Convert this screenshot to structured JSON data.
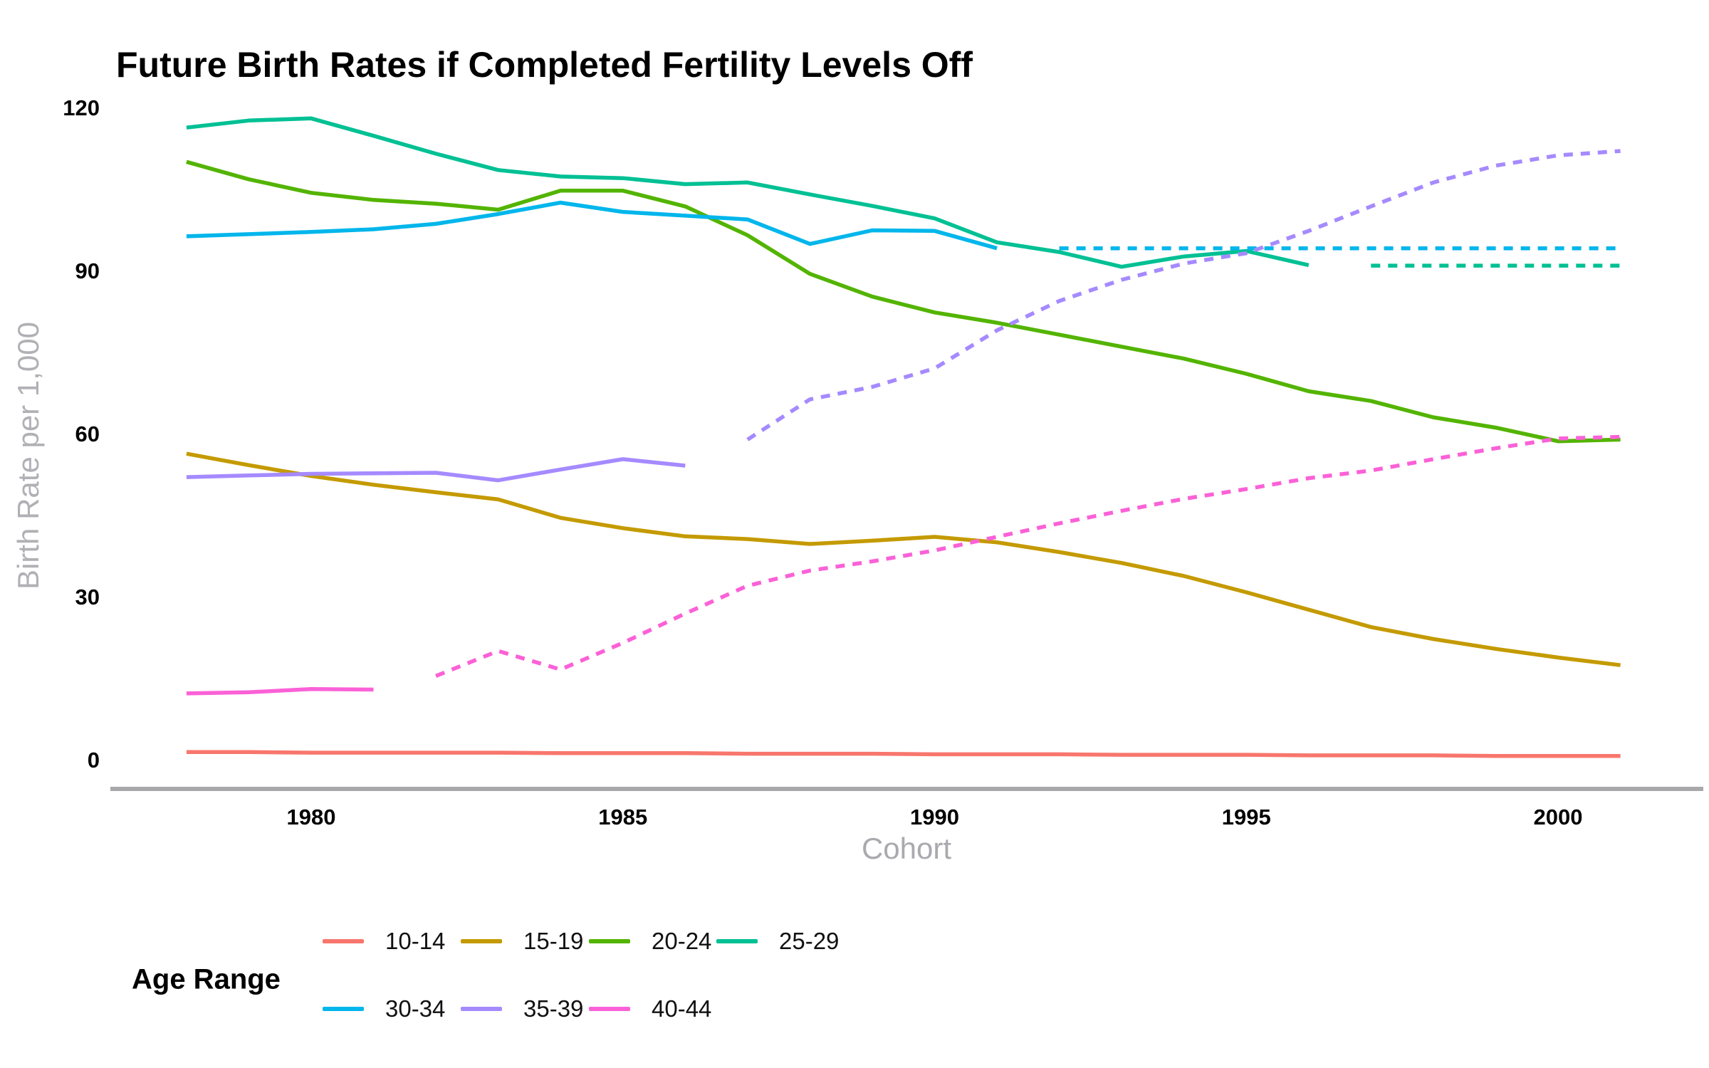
{
  "chart_data": {
    "type": "line",
    "title": "Future Birth Rates if Completed Fertility Levels Off",
    "xlabel": "Cohort",
    "ylabel": "Birth Rate per 1,000",
    "legend_title": "Age Range",
    "x_ticks": [
      "1980",
      "1985",
      "1990",
      "1995",
      "2000"
    ],
    "y_ticks": [
      "0",
      "30",
      "60",
      "90",
      "120"
    ],
    "x_range": [
      1976.8,
      2002.3
    ],
    "ylim": [
      0,
      120
    ],
    "grid": false,
    "legend_position": "bottom",
    "axis_line_color": "#a8a8aa",
    "axis_title_color": "#a9a9ae",
    "series": [
      {
        "name": "10-14",
        "color": "#F8766D",
        "solid": {
          "start": 1978,
          "values": [
            1.4,
            1.4,
            1.3,
            1.3,
            1.3,
            1.3,
            1.2,
            1.2,
            1.2,
            1.1,
            1.1,
            1.1,
            1.0,
            1.0,
            1.0,
            0.9,
            0.9,
            0.9,
            0.8,
            0.8,
            0.8,
            0.7,
            0.7,
            0.7
          ]
        },
        "dashed": null
      },
      {
        "name": "15-19",
        "color": "#C49A00",
        "solid": {
          "start": 1978,
          "values": [
            56.3,
            54.2,
            52.2,
            50.6,
            49.2,
            47.9,
            44.5,
            42.6,
            41.1,
            40.6,
            39.7,
            40.3,
            41.0,
            40.0,
            38.2,
            36.2,
            33.8,
            30.8,
            27.6,
            24.4,
            22.2,
            20.4,
            18.8,
            17.4
          ]
        },
        "dashed": null
      },
      {
        "name": "20-24",
        "color": "#53B400",
        "solid": {
          "start": 1978,
          "values": [
            110.0,
            106.8,
            104.3,
            103.0,
            102.3,
            101.2,
            104.7,
            104.7,
            101.8,
            96.5,
            89.4,
            85.2,
            82.3,
            80.4,
            78.2,
            76.0,
            73.8,
            71.0,
            67.8,
            66.0,
            63.0,
            61.1,
            58.6,
            58.9
          ]
        },
        "dashed": null
      },
      {
        "name": "25-29",
        "color": "#00C094",
        "solid": {
          "start": 1978,
          "values": [
            116.3,
            117.6,
            118.0,
            114.8,
            111.5,
            108.5,
            107.3,
            107.0,
            105.9,
            106.2,
            104.0,
            101.9,
            99.6,
            95.2,
            93.4,
            90.7,
            92.6,
            93.6,
            91.0
          ]
        },
        "dashed": {
          "start": 1997,
          "values": [
            90.9,
            90.9,
            90.9,
            90.9,
            90.9
          ]
        }
      },
      {
        "name": "30-34",
        "color": "#00B6EB",
        "solid": {
          "start": 1978,
          "values": [
            96.3,
            96.7,
            97.1,
            97.6,
            98.6,
            100.4,
            102.5,
            100.8,
            100.1,
            99.4,
            94.9,
            97.4,
            97.3,
            94.1
          ]
        },
        "dashed": {
          "start": 1992,
          "values": [
            94.1,
            94.1,
            94.1,
            94.1,
            94.1,
            94.1,
            94.1,
            94.1,
            94.1,
            94.1
          ]
        }
      },
      {
        "name": "35-39",
        "color": "#A58AFF",
        "solid": {
          "start": 1978,
          "values": [
            52.0,
            52.3,
            52.6,
            52.7,
            52.8,
            51.4,
            53.4,
            55.3,
            54.1
          ]
        },
        "dashed": {
          "start": 1987,
          "values": [
            58.9,
            66.3,
            68.6,
            72.0,
            79.0,
            84.4,
            88.3,
            91.3,
            93.2,
            97.3,
            101.8,
            106.2,
            109.3,
            111.2,
            112.0
          ]
        }
      },
      {
        "name": "40-44",
        "color": "#FB61D7",
        "solid": {
          "start": 1978,
          "values": [
            12.2,
            12.4,
            13.0,
            12.9
          ]
        },
        "dashed": {
          "start": 1982,
          "values": [
            15.4,
            20.0,
            16.6,
            21.5,
            26.9,
            32.0,
            34.8,
            36.5,
            38.5,
            41.0,
            43.5,
            45.8,
            48.0,
            49.8,
            51.8,
            53.2,
            55.3,
            57.3,
            59.1,
            59.4
          ]
        }
      }
    ]
  },
  "legend": {
    "title": "Age Range",
    "rows": [
      [
        "10-14",
        "15-19",
        "20-24",
        "25-29"
      ],
      [
        "30-34",
        "35-39",
        "40-44"
      ]
    ]
  }
}
